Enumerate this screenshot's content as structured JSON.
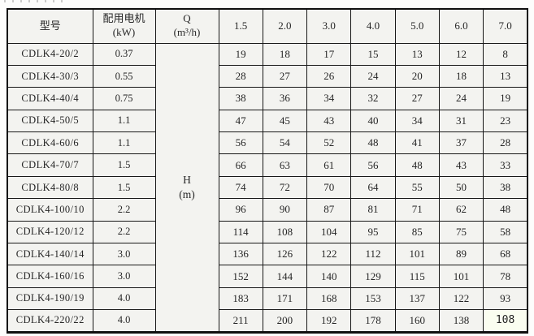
{
  "table": {
    "header": {
      "model": "型号",
      "motor": [
        "配用电机",
        "(kW)"
      ],
      "q": [
        "Q",
        "(m³/h)"
      ],
      "flow_values": [
        "1.5",
        "2.0",
        "3.0",
        "4.0",
        "5.0",
        "6.0",
        "7.0"
      ]
    },
    "h_label": [
      "H",
      "(m)"
    ],
    "rows": [
      {
        "model": "CDLK4-20/2",
        "kw": "0.37",
        "values": [
          "19",
          "18",
          "17",
          "15",
          "13",
          "12",
          "8"
        ]
      },
      {
        "model": "CDLK4-30/3",
        "kw": "0.55",
        "values": [
          "28",
          "27",
          "26",
          "24",
          "20",
          "18",
          "13"
        ]
      },
      {
        "model": "CDLK4-40/4",
        "kw": "0.75",
        "values": [
          "38",
          "36",
          "34",
          "32",
          "27",
          "24",
          "19"
        ]
      },
      {
        "model": "CDLK4-50/5",
        "kw": "1.1",
        "values": [
          "47",
          "45",
          "43",
          "40",
          "34",
          "31",
          "23"
        ]
      },
      {
        "model": "CDLK4-60/6",
        "kw": "1.1",
        "values": [
          "56",
          "54",
          "52",
          "48",
          "41",
          "37",
          "28"
        ]
      },
      {
        "model": "CDLK4-70/7",
        "kw": "1.5",
        "values": [
          "66",
          "63",
          "61",
          "56",
          "48",
          "43",
          "33"
        ]
      },
      {
        "model": "CDLK4-80/8",
        "kw": "1.5",
        "values": [
          "74",
          "72",
          "70",
          "64",
          "55",
          "50",
          "38"
        ]
      },
      {
        "model": "CDLK4-100/10",
        "kw": "2.2",
        "values": [
          "96",
          "90",
          "87",
          "81",
          "71",
          "62",
          "48"
        ]
      },
      {
        "model": "CDLK4-120/12",
        "kw": "2.2",
        "values": [
          "114",
          "108",
          "104",
          "95",
          "85",
          "75",
          "58"
        ]
      },
      {
        "model": "CDLK4-140/14",
        "kw": "3.0",
        "values": [
          "136",
          "126",
          "122",
          "112",
          "101",
          "89",
          "68"
        ]
      },
      {
        "model": "CDLK4-160/16",
        "kw": "3.0",
        "values": [
          "152",
          "144",
          "140",
          "129",
          "115",
          "101",
          "78"
        ]
      },
      {
        "model": "CDLK4-190/19",
        "kw": "4.0",
        "values": [
          "183",
          "171",
          "168",
          "153",
          "137",
          "122",
          "93"
        ]
      },
      {
        "model": "CDLK4-220/22",
        "kw": "4.0",
        "values": [
          "211",
          "200",
          "192",
          "178",
          "160",
          "138",
          "108"
        ]
      }
    ],
    "edited_cell": {
      "row_index": 12,
      "value_index": 6
    }
  },
  "colors": {
    "border": "#181818",
    "cell_background": "#f3f3f0",
    "edited_cell_background": "#fafdf0",
    "text": "#262626"
  }
}
